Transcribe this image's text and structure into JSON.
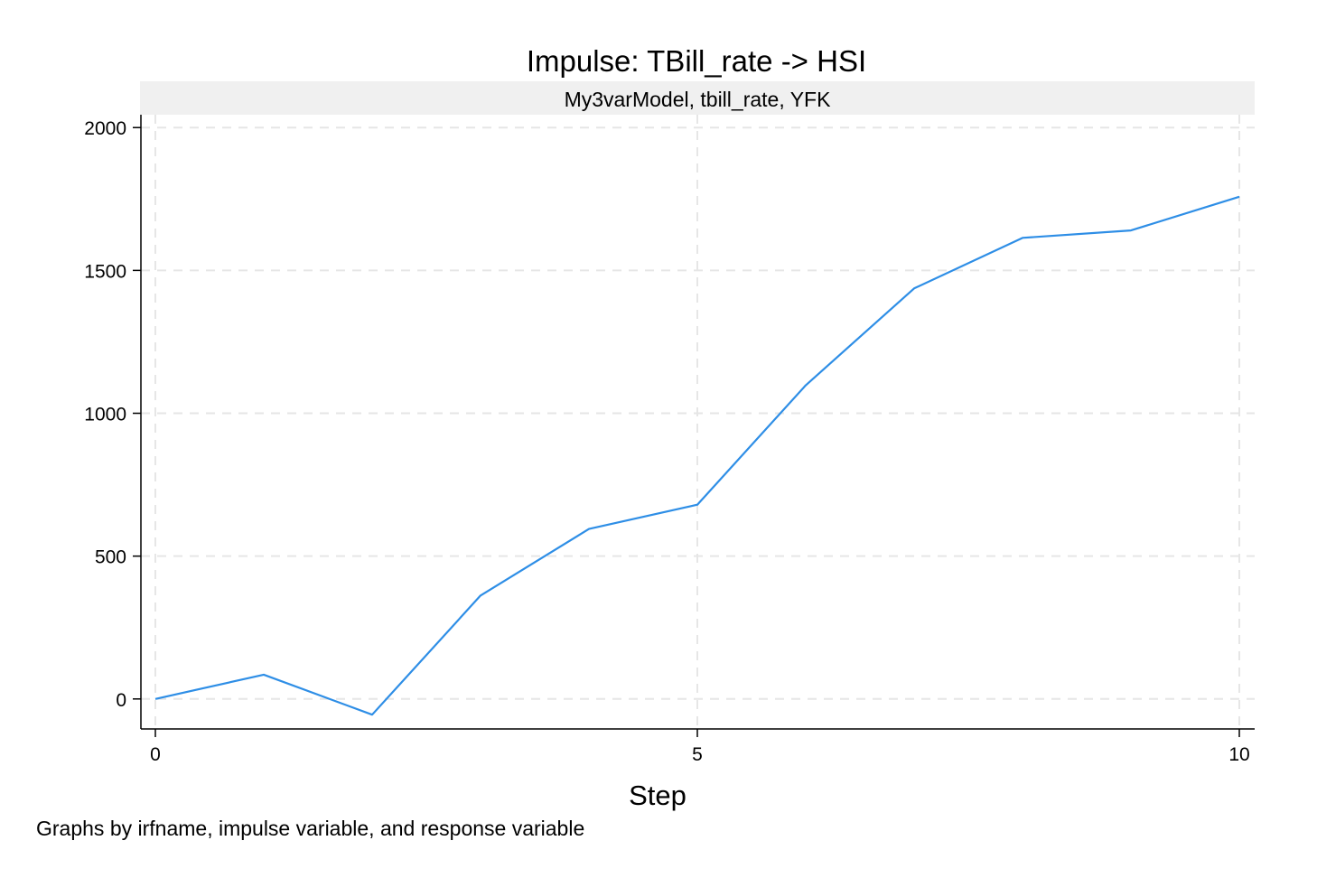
{
  "chart_data": {
    "type": "line",
    "title": "Impulse: TBill_rate -> HSI",
    "subtitle": "My3varModel, tbill_rate, YFK",
    "xlabel": "Step",
    "ylabel": "",
    "note": "Graphs by irfname, impulse variable, and response variable",
    "x": [
      0,
      1,
      2,
      3,
      4,
      5,
      6,
      7,
      8,
      9,
      10
    ],
    "series": [
      {
        "values": [
          0,
          85,
          -55,
          362,
          595,
          680,
          1098,
          1437,
          1614,
          1640,
          1758
        ]
      }
    ],
    "xlim": [
      0,
      10
    ],
    "ylim": [
      -105,
      2045
    ],
    "xticks": [
      0,
      5,
      10
    ],
    "xtick_labels": [
      "0",
      "5",
      "10"
    ],
    "yticks": [
      0,
      500,
      1000,
      1500,
      2000
    ],
    "ytick_labels": [
      "0",
      "500",
      "1000",
      "1500",
      "2000"
    ],
    "grid": true,
    "colors": {
      "line": "#2e8ee6",
      "subtitle_band": "#f0f0f0"
    }
  }
}
